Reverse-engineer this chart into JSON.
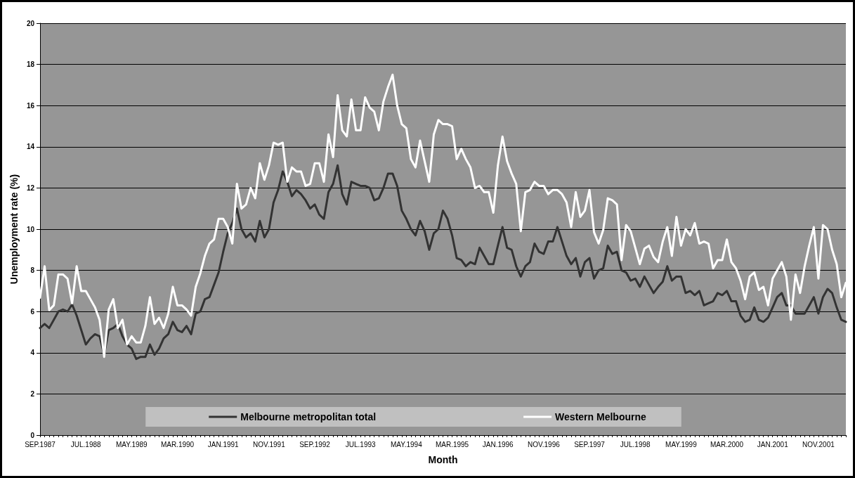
{
  "chart_data": {
    "type": "line",
    "xlabel": "Month",
    "ylabel": "Unemployment rate (%)",
    "categories": [
      "SEP.1987",
      null,
      null,
      null,
      null,
      null,
      null,
      null,
      null,
      null,
      "JUL.1988",
      null,
      null,
      null,
      null,
      null,
      null,
      null,
      null,
      null,
      "MAY.1989",
      null,
      null,
      null,
      null,
      null,
      null,
      null,
      null,
      null,
      "MAR.1990",
      null,
      null,
      null,
      null,
      null,
      null,
      null,
      null,
      null,
      "JAN.1991",
      null,
      null,
      null,
      null,
      null,
      null,
      null,
      null,
      null,
      "NOV.1991",
      null,
      null,
      null,
      null,
      null,
      null,
      null,
      null,
      null,
      "SEP.1992",
      null,
      null,
      null,
      null,
      null,
      null,
      null,
      null,
      null,
      "JUL.1993",
      null,
      null,
      null,
      null,
      null,
      null,
      null,
      null,
      null,
      "MAY.1994",
      null,
      null,
      null,
      null,
      null,
      null,
      null,
      null,
      null,
      "MAR.1995",
      null,
      null,
      null,
      null,
      null,
      null,
      null,
      null,
      null,
      "JAN.1996",
      null,
      null,
      null,
      null,
      null,
      null,
      null,
      null,
      null,
      "NOV.1996",
      null,
      null,
      null,
      null,
      null,
      null,
      null,
      null,
      null,
      "SEP.1997",
      null,
      null,
      null,
      null,
      null,
      null,
      null,
      null,
      null,
      "JUL.1998",
      null,
      null,
      null,
      null,
      null,
      null,
      null,
      null,
      null,
      "MAY.1999",
      null,
      null,
      null,
      null,
      null,
      null,
      null,
      null,
      null,
      "MAR.2000",
      null,
      null,
      null,
      null,
      null,
      null,
      null,
      null,
      null,
      "JAN.2001",
      null,
      null,
      null,
      null,
      null,
      null,
      null,
      null,
      null,
      "NOV.2001",
      null,
      null,
      null,
      null,
      null,
      null
    ],
    "series": [
      {
        "name": "Melbourne metropolitan total",
        "color": "#333333",
        "values": [
          5.2,
          5.4,
          5.2,
          5.6,
          6.0,
          6.1,
          6.0,
          6.35,
          5.8,
          5.1,
          4.4,
          4.7,
          4.9,
          4.8,
          3.9,
          5.1,
          5.2,
          5.4,
          4.8,
          4.4,
          4.2,
          3.7,
          3.8,
          3.8,
          4.4,
          3.9,
          4.2,
          4.7,
          4.9,
          5.5,
          5.1,
          5.0,
          5.3,
          4.9,
          5.9,
          6.0,
          6.6,
          6.7,
          7.3,
          7.9,
          8.9,
          9.8,
          10.3,
          11.0,
          10.0,
          9.6,
          9.8,
          9.4,
          10.4,
          9.6,
          10.0,
          11.3,
          11.9,
          12.8,
          12.3,
          11.6,
          11.9,
          11.7,
          11.4,
          11.0,
          11.2,
          10.7,
          10.5,
          11.8,
          12.2,
          13.1,
          11.7,
          11.2,
          12.3,
          12.2,
          12.1,
          12.1,
          12.0,
          11.4,
          11.5,
          12.0,
          12.7,
          12.7,
          12.1,
          10.9,
          10.5,
          10.0,
          9.7,
          10.4,
          9.9,
          9.0,
          9.8,
          10.0,
          10.9,
          10.5,
          9.7,
          8.6,
          8.5,
          8.2,
          8.4,
          8.3,
          9.1,
          8.7,
          8.3,
          8.3,
          9.2,
          10.1,
          9.1,
          9.0,
          8.2,
          7.7,
          8.2,
          8.4,
          9.3,
          8.9,
          8.8,
          9.4,
          9.4,
          10.1,
          9.4,
          8.7,
          8.3,
          8.6,
          7.7,
          8.4,
          8.6,
          7.6,
          8.0,
          8.1,
          9.2,
          8.8,
          8.9,
          8.0,
          7.9,
          7.5,
          7.6,
          7.2,
          7.7,
          7.3,
          6.9,
          7.2,
          7.45,
          8.2,
          7.5,
          7.7,
          7.7,
          6.9,
          7.0,
          6.8,
          7.0,
          6.3,
          6.4,
          6.5,
          6.9,
          6.8,
          7.0,
          6.5,
          6.5,
          5.8,
          5.5,
          5.6,
          6.2,
          5.6,
          5.5,
          5.7,
          6.2,
          6.7,
          6.9,
          6.3,
          6.3,
          5.9,
          5.9,
          5.9,
          6.3,
          6.7,
          5.9,
          6.7,
          7.1,
          6.9,
          6.2,
          5.6,
          5.5
        ]
      },
      {
        "name": "Western Melbourne",
        "color": "#ffffff",
        "values": [
          6.67,
          8.2,
          6.07,
          6.3,
          7.8,
          7.8,
          7.6,
          6.4,
          8.2,
          7.0,
          7.0,
          6.6,
          6.2,
          5.6,
          3.8,
          6.1,
          6.6,
          5.2,
          5.6,
          4.4,
          4.8,
          4.5,
          4.5,
          5.3,
          6.7,
          5.4,
          5.7,
          5.2,
          5.9,
          7.2,
          6.3,
          6.3,
          6.1,
          5.8,
          7.2,
          7.85,
          8.7,
          9.3,
          9.5,
          10.5,
          10.5,
          10.1,
          9.3,
          12.2,
          11.0,
          11.2,
          12.0,
          11.5,
          13.2,
          12.4,
          13.1,
          14.2,
          14.1,
          14.2,
          12.3,
          13.0,
          12.8,
          12.8,
          12.1,
          12.2,
          13.2,
          13.2,
          12.3,
          14.6,
          13.5,
          16.5,
          14.8,
          14.5,
          16.3,
          14.8,
          14.8,
          16.4,
          15.9,
          15.7,
          14.8,
          16.2,
          16.9,
          17.5,
          16.0,
          15.1,
          14.9,
          13.4,
          13.0,
          14.3,
          13.3,
          12.3,
          14.6,
          15.3,
          15.1,
          15.1,
          15.0,
          13.4,
          13.9,
          13.4,
          13.0,
          12.0,
          12.1,
          11.8,
          11.8,
          10.8,
          13.1,
          14.5,
          13.3,
          12.7,
          12.2,
          9.9,
          11.8,
          11.9,
          12.3,
          12.1,
          12.1,
          11.7,
          11.9,
          11.9,
          11.7,
          11.3,
          10.1,
          11.8,
          10.6,
          10.9,
          11.9,
          9.85,
          9.3,
          9.96,
          11.5,
          11.4,
          11.2,
          8.5,
          10.2,
          9.9,
          9.1,
          8.3,
          9.05,
          9.2,
          8.65,
          8.4,
          9.4,
          10.1,
          8.7,
          10.6,
          9.2,
          10.0,
          9.7,
          10.3,
          9.3,
          9.4,
          9.3,
          8.1,
          8.5,
          8.5,
          9.5,
          8.4,
          8.1,
          7.5,
          6.6,
          7.7,
          7.9,
          7.05,
          7.2,
          6.3,
          7.6,
          8.0,
          8.4,
          7.7,
          5.6,
          7.8,
          6.9,
          8.2,
          9.2,
          10.1,
          7.6,
          10.2,
          10.0,
          9.0,
          8.3,
          6.7,
          7.4
        ]
      }
    ],
    "ylim": [
      0,
      20
    ],
    "yticks": [
      0,
      2,
      4,
      6,
      8,
      10,
      12,
      14,
      16,
      18,
      20
    ],
    "grid": "y",
    "legend": "bottom",
    "marker": "none",
    "line_style": "solid"
  }
}
